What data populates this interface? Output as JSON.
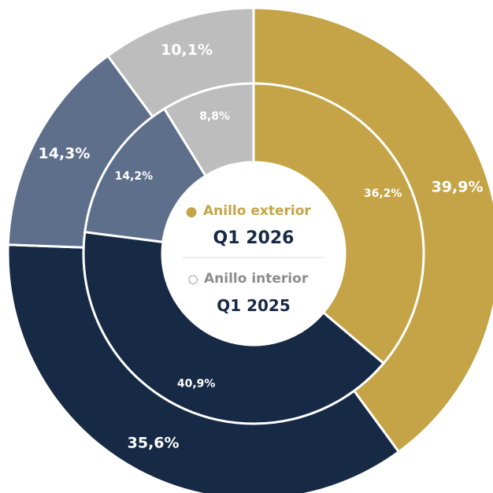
{
  "chart_data": {
    "type": "pie",
    "variant": "nested-donut",
    "colors": [
      "#c4a446",
      "#172a45",
      "#5e6f8b",
      "#bdbdbd"
    ],
    "rings": [
      {
        "name": "Q1 2026",
        "legend": "Anillo exterior",
        "values": [
          39.9,
          35.6,
          14.3,
          10.1
        ],
        "labels": [
          "39,9%",
          "35,6%",
          "14,3%",
          "10,1%"
        ]
      },
      {
        "name": "Q1 2025",
        "legend": "Anillo interior",
        "values": [
          36.2,
          40.9,
          14.2,
          8.8
        ],
        "labels": [
          "36,2%",
          "40,9%",
          "14,2%",
          "8,8%"
        ]
      }
    ]
  },
  "center": {
    "outer_marker": "●",
    "outer_legend": "Anillo exterior",
    "outer_period": "Q1 2026",
    "inner_marker": "○",
    "inner_legend": "Anillo interior",
    "inner_period": "Q1 2025",
    "accent": "#c4a446",
    "muted": "#8c8c8c",
    "title_color": "#172a45"
  }
}
